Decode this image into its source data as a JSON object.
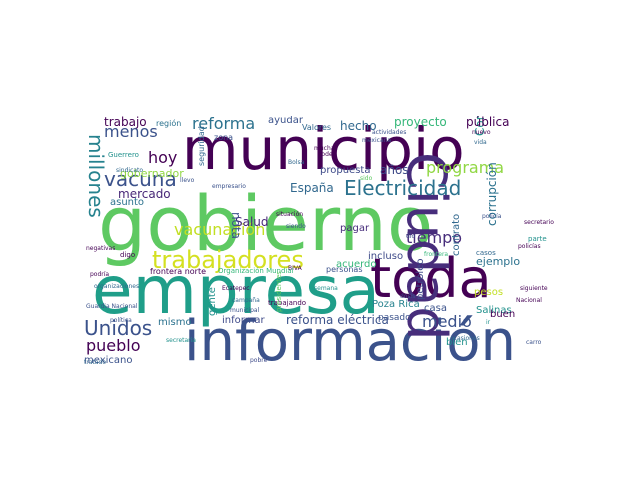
{
  "palette": {
    "dark_purple": "#440154",
    "indigo": "#3b528b",
    "slate": "#31688e",
    "blue": "#26828e",
    "teal": "#21918c",
    "green": "#35b779",
    "lime": "#5ec962",
    "yellow": "#d4e021",
    "light_green": "#90d743"
  },
  "words": [
    {
      "text": "gobierno",
      "color": "#5ec962"
    },
    {
      "text": "empresa",
      "color": "#1f9e89"
    },
    {
      "text": "información",
      "color": "#3b528b"
    },
    {
      "text": "municipio",
      "color": "#440154"
    },
    {
      "text": "toda",
      "color": "#440154"
    },
    {
      "text": "Ciudad",
      "color": "#472d7b"
    },
    {
      "text": "trabajadores",
      "color": "#d4e021"
    },
    {
      "text": "Electricidad",
      "color": "#2c728e"
    },
    {
      "text": "vacuna",
      "color": "#3b528b"
    },
    {
      "text": "millones",
      "color": "#26828e"
    },
    {
      "text": "Unidos",
      "color": "#3b528b"
    },
    {
      "text": "reforma",
      "color": "#2c728e"
    },
    {
      "text": "vacunación",
      "color": "#c2df23"
    },
    {
      "text": "programa",
      "color": "#90d743"
    },
    {
      "text": "tiempo",
      "color": "#472d7b"
    },
    {
      "text": "menos",
      "color": "#3b528b"
    },
    {
      "text": "hoy",
      "color": "#440154"
    },
    {
      "text": "pueblo",
      "color": "#440154"
    },
    {
      "text": "medio",
      "color": "#3b528b"
    },
    {
      "text": "mercado",
      "color": "#482878"
    },
    {
      "text": "proyecto",
      "color": "#35b779"
    },
    {
      "text": "hecho",
      "color": "#31688e"
    },
    {
      "text": "trabajo",
      "color": "#440154"
    },
    {
      "text": "España",
      "color": "#31688e"
    },
    {
      "text": "años",
      "color": "#3e4a89"
    },
    {
      "text": "Comisión Federal",
      "color": "#21918c"
    },
    {
      "text": "corrupción",
      "color": "#2c728e"
    },
    {
      "text": "pública",
      "color": "#440154"
    },
    {
      "text": "grupo",
      "color": "#31688e"
    },
    {
      "text": "Salud",
      "color": "#482878"
    },
    {
      "text": "nota",
      "color": "#3b528b"
    },
    {
      "text": "propuesta",
      "color": "#3e4a89"
    },
    {
      "text": "ayudar",
      "color": "#3b528b"
    },
    {
      "text": "gobernador",
      "color": "#90d743"
    },
    {
      "text": "asunto",
      "color": "#2c728e"
    },
    {
      "text": "reforma eléctrica",
      "color": "#3b528b"
    },
    {
      "text": "pagar",
      "color": "#472d7b"
    },
    {
      "text": "incluso",
      "color": "#3e4a89"
    },
    {
      "text": "ejemplo",
      "color": "#2c728e"
    },
    {
      "text": "acuerdo",
      "color": "#35b779"
    },
    {
      "text": "Poza Rica",
      "color": "#26828e"
    },
    {
      "text": "pesos",
      "color": "#c2df23"
    },
    {
      "text": "casa",
      "color": "#3b528b"
    },
    {
      "text": "Salinas",
      "color": "#21918c"
    },
    {
      "text": "bien",
      "color": "#21918c"
    },
    {
      "text": "contrato",
      "color": "#31688e"
    },
    {
      "text": "petróleo",
      "color": "#3e4a89"
    },
    {
      "text": "buen",
      "color": "#440154"
    },
    {
      "text": "gente",
      "color": "#21918c"
    },
    {
      "text": "informar",
      "color": "#3e4a89"
    },
    {
      "text": "mismo",
      "color": "#2c728e"
    },
    {
      "text": "mexicano",
      "color": "#3b528b"
    },
    {
      "text": "frontera norte",
      "color": "#440154"
    },
    {
      "text": "pasado",
      "color": "#3b528b"
    },
    {
      "text": "región",
      "color": "#2c728e"
    },
    {
      "text": "seguridad",
      "color": "#31688e"
    },
    {
      "text": "zona",
      "color": "#3b528b"
    },
    {
      "text": "Valores",
      "color": "#31688e"
    },
    {
      "text": "Guerrero",
      "color": "#21918c"
    },
    {
      "text": "sindicato",
      "color": "#31688e"
    },
    {
      "text": "empresario",
      "color": "#3b528b"
    },
    {
      "text": "situación",
      "color": "#440154"
    },
    {
      "text": "BIVA",
      "color": "#440154"
    },
    {
      "text": "Organización Mundial",
      "color": "#35b779"
    },
    {
      "text": "personas",
      "color": "#3b528b"
    },
    {
      "text": "trabajando",
      "color": "#440154"
    },
    {
      "text": "Ecatepec",
      "color": "#440154"
    },
    {
      "text": "campaña",
      "color": "#31688e"
    },
    {
      "text": "municipal",
      "color": "#3b528b"
    },
    {
      "text": "semana",
      "color": "#21918c"
    },
    {
      "text": "casos",
      "color": "#31688e"
    },
    {
      "text": "frontera",
      "color": "#35b779"
    },
    {
      "text": "dio",
      "color": "#3e4a89"
    },
    {
      "text": "digo",
      "color": "#440154"
    },
    {
      "text": "Guardia Nacional",
      "color": "#3b528b"
    },
    {
      "text": "política",
      "color": "#3b528b"
    },
    {
      "text": "secretaria",
      "color": "#21918c"
    },
    {
      "text": "tratado",
      "color": "#31688e"
    },
    {
      "text": "pobre",
      "color": "#3e4a89"
    },
    {
      "text": "Poder",
      "color": "#440154"
    },
    {
      "text": "mexicana",
      "color": "#3b528b"
    },
    {
      "text": "muchas",
      "color": "#440154"
    },
    {
      "text": "vida",
      "color": "#31688e"
    },
    {
      "text": "nuevo",
      "color": "#440154"
    },
    {
      "text": "Bolsa",
      "color": "#31688e"
    },
    {
      "text": "sido",
      "color": "#5ec962"
    },
    {
      "text": "parte",
      "color": "#21918c"
    },
    {
      "text": "secretario",
      "color": "#440154"
    },
    {
      "text": "policía",
      "color": "#3b528b"
    },
    {
      "text": "policías",
      "color": "#440154"
    },
    {
      "text": "siguiente",
      "color": "#440154"
    },
    {
      "text": "Nacional",
      "color": "#440154"
    },
    {
      "text": "carro",
      "color": "#3b528b"
    },
    {
      "text": "siendo",
      "color": "#3b528b"
    },
    {
      "text": "llevo",
      "color": "#3b528b"
    },
    {
      "text": "negativas",
      "color": "#440154"
    },
    {
      "text": "actividades",
      "color": "#3b528b"
    },
    {
      "text": "podría",
      "color": "#440154"
    },
    {
      "text": "ocasiones",
      "color": "#31688e"
    },
    {
      "text": "presidentes",
      "color": "#5ec962"
    },
    {
      "text": "organizaciones",
      "color": "#31688e"
    },
    {
      "text": "ir",
      "color": "#21918c"
    },
    {
      "text": "dosis",
      "color": "#3b528b"
    }
  ]
}
